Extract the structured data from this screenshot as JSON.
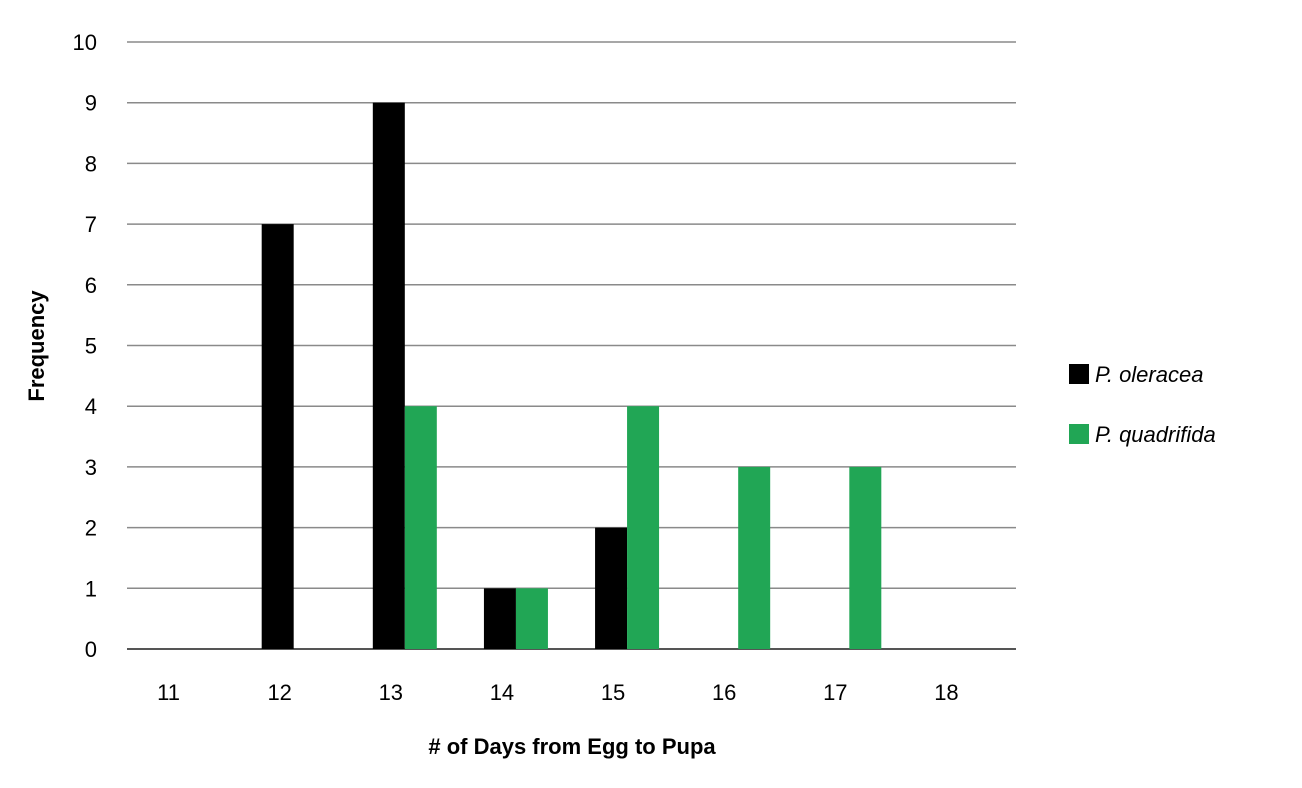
{
  "chart_data": {
    "type": "bar",
    "title": "",
    "xlabel": "# of Days from Egg to Pupa",
    "ylabel": "Frequency",
    "categories": [
      "11",
      "12",
      "13",
      "14",
      "15",
      "16",
      "17",
      "18"
    ],
    "ylim": [
      0,
      10
    ],
    "yticks": [
      0,
      1,
      2,
      3,
      4,
      5,
      6,
      7,
      8,
      9,
      10
    ],
    "grid": true,
    "legend_position": "right",
    "series": [
      {
        "name": "P. oleracea",
        "color": "#000000",
        "values": [
          0,
          7,
          9,
          1,
          2,
          0,
          0,
          0
        ]
      },
      {
        "name": "P. quadrifida",
        "color": "#21a655",
        "values": [
          0,
          0,
          4,
          1,
          4,
          3,
          3,
          0
        ]
      }
    ]
  }
}
